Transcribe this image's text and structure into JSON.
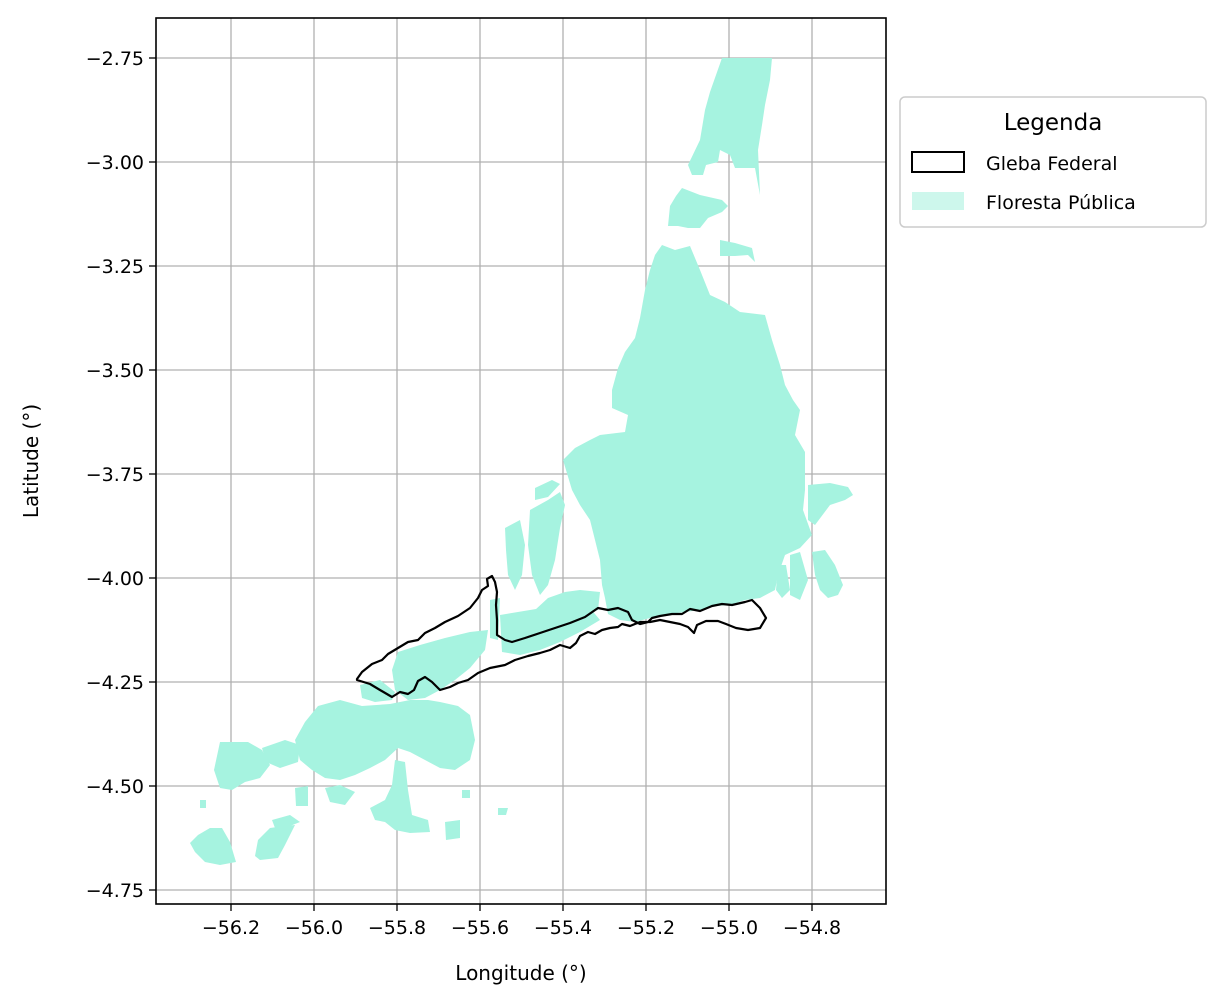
{
  "map": {
    "xlabel": "Longitude (°)",
    "ylabel": "Latitude (°)",
    "xticks": [
      "−56.2",
      "−56.0",
      "−55.8",
      "−55.6",
      "−55.4",
      "−55.2",
      "−55.0",
      "−54.8"
    ],
    "yticks": [
      "−2.75",
      "−3.00",
      "−3.25",
      "−3.50",
      "−3.75",
      "−4.00",
      "−4.25",
      "−4.50",
      "−4.75"
    ],
    "xlim": [
      -56.38,
      -54.62
    ],
    "ylim": [
      -4.785,
      -2.655
    ],
    "grid": true
  },
  "legend": {
    "title": "Legenda",
    "placement": "outside upper right",
    "items": [
      {
        "label": "Gleba Federal",
        "style": "outline",
        "color": "#000000"
      },
      {
        "label": "Floresta Pública",
        "style": "fill",
        "color": "#a6f3e0"
      }
    ]
  },
  "colors": {
    "forest_fill": "#a6f3e0",
    "forest_legend_fill": "#cdf7ec",
    "gleba_outline": "#000000",
    "grid": "#b0b0b0",
    "legend_border": "#cccccc"
  }
}
